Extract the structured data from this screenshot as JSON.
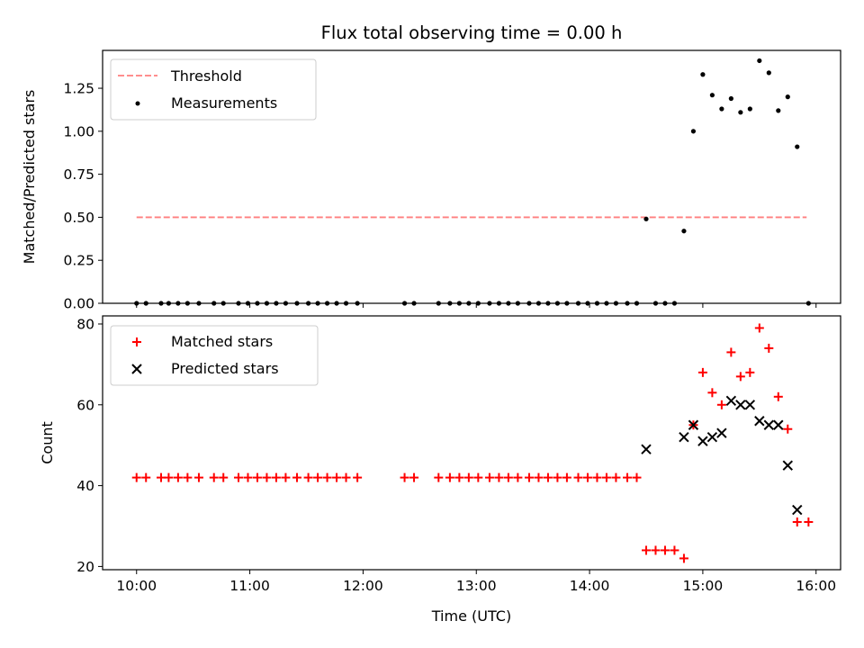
{
  "chart_data": [
    {
      "type": "scatter",
      "title": "Flux total observing time = 0.00 h",
      "xlabel": "",
      "ylabel": "Matched/Predicted stars",
      "xlim": [
        "09:42",
        "16:13"
      ],
      "ylim": [
        0,
        1.47
      ],
      "yticks": [
        0.0,
        0.25,
        0.5,
        0.75,
        1.0,
        1.25
      ],
      "ytick_labels": [
        "0.00",
        "0.25",
        "0.50",
        "0.75",
        "1.00",
        "1.25"
      ],
      "xticks": [
        "10:00",
        "11:00",
        "12:00",
        "13:00",
        "14:00",
        "15:00",
        "16:00"
      ],
      "show_xtick_labels": false,
      "grid": false,
      "legend": "upper left",
      "series": [
        {
          "name": "Threshold",
          "kind": "line",
          "color": "#ff7f7f",
          "dash": "dashed",
          "x": [
            "10:00",
            "15:55"
          ],
          "y": [
            0.5,
            0.5
          ]
        },
        {
          "name": "Measurements",
          "kind": "scatter",
          "marker": "dot",
          "color": "#000000",
          "x": [
            "10:00",
            "10:05",
            "10:13",
            "10:17",
            "10:22",
            "10:27",
            "10:33",
            "10:41",
            "10:46",
            "10:54",
            "10:59",
            "11:04",
            "11:09",
            "11:14",
            "11:19",
            "11:25",
            "11:31",
            "11:36",
            "11:41",
            "11:46",
            "11:51",
            "11:57",
            "12:22",
            "12:27",
            "12:40",
            "12:46",
            "12:51",
            "12:56",
            "13:01",
            "13:07",
            "13:12",
            "13:17",
            "13:22",
            "13:28",
            "13:33",
            "13:38",
            "13:43",
            "13:48",
            "13:54",
            "13:59",
            "14:04",
            "14:09",
            "14:14",
            "14:20",
            "14:25",
            "14:30",
            "14:35",
            "14:40",
            "14:45",
            "14:50",
            "14:55",
            "15:00",
            "15:05",
            "15:10",
            "15:15",
            "15:20",
            "15:25",
            "15:30",
            "15:35",
            "15:40",
            "15:45",
            "15:50",
            "15:56"
          ],
          "y": [
            0,
            0,
            0,
            0,
            0,
            0,
            0,
            0,
            0,
            0,
            0,
            0,
            0,
            0,
            0,
            0,
            0,
            0,
            0,
            0,
            0,
            0,
            0,
            0,
            0,
            0,
            0,
            0,
            0,
            0,
            0,
            0,
            0,
            0,
            0,
            0,
            0,
            0,
            0,
            0,
            0,
            0,
            0,
            0,
            0,
            0.49,
            0,
            0,
            0,
            0.42,
            1.0,
            1.33,
            1.21,
            1.13,
            1.19,
            1.11,
            1.13,
            1.41,
            1.34,
            1.12,
            1.2,
            0.91,
            0
          ]
        }
      ]
    },
    {
      "type": "scatter",
      "title": "",
      "xlabel": "Time (UTC)",
      "ylabel": "Count",
      "xlim": [
        "09:42",
        "16:13"
      ],
      "ylim": [
        19.2,
        82
      ],
      "yticks": [
        20,
        40,
        60,
        80
      ],
      "ytick_labels": [
        "20",
        "40",
        "60",
        "80"
      ],
      "xticks": [
        "10:00",
        "11:00",
        "12:00",
        "13:00",
        "14:00",
        "15:00",
        "16:00"
      ],
      "xtick_labels": [
        "10:00",
        "11:00",
        "12:00",
        "13:00",
        "14:00",
        "15:00",
        "16:00"
      ],
      "show_xtick_labels": true,
      "grid": false,
      "legend": "upper left",
      "series": [
        {
          "name": "Matched stars",
          "kind": "scatter",
          "marker": "plus",
          "color": "#ff0000",
          "x": [
            "10:00",
            "10:05",
            "10:13",
            "10:17",
            "10:22",
            "10:27",
            "10:33",
            "10:41",
            "10:46",
            "10:54",
            "10:59",
            "11:04",
            "11:09",
            "11:14",
            "11:19",
            "11:25",
            "11:31",
            "11:36",
            "11:41",
            "11:46",
            "11:51",
            "11:57",
            "12:22",
            "12:27",
            "12:40",
            "12:46",
            "12:51",
            "12:56",
            "13:01",
            "13:07",
            "13:12",
            "13:17",
            "13:22",
            "13:28",
            "13:33",
            "13:38",
            "13:43",
            "13:48",
            "13:54",
            "13:59",
            "14:04",
            "14:09",
            "14:14",
            "14:20",
            "14:25",
            "14:30",
            "14:35",
            "14:40",
            "14:45",
            "14:50",
            "14:55",
            "15:00",
            "15:05",
            "15:10",
            "15:15",
            "15:20",
            "15:25",
            "15:30",
            "15:35",
            "15:40",
            "15:45",
            "15:50",
            "15:56"
          ],
          "y": [
            42,
            42,
            42,
            42,
            42,
            42,
            42,
            42,
            42,
            42,
            42,
            42,
            42,
            42,
            42,
            42,
            42,
            42,
            42,
            42,
            42,
            42,
            42,
            42,
            42,
            42,
            42,
            42,
            42,
            42,
            42,
            42,
            42,
            42,
            42,
            42,
            42,
            42,
            42,
            42,
            42,
            42,
            42,
            42,
            42,
            24,
            24,
            24,
            24,
            22,
            55,
            68,
            63,
            60,
            73,
            67,
            68,
            79,
            74,
            62,
            54,
            31,
            31
          ]
        },
        {
          "name": "Predicted stars",
          "kind": "scatter",
          "marker": "x",
          "color": "#000000",
          "x": [
            "14:30",
            "14:50",
            "14:55",
            "15:00",
            "15:05",
            "15:10",
            "15:15",
            "15:20",
            "15:25",
            "15:30",
            "15:35",
            "15:40",
            "15:45",
            "15:50"
          ],
          "y": [
            49,
            52,
            55,
            51,
            52,
            53,
            61,
            60,
            60,
            56,
            55,
            55,
            45,
            34
          ]
        }
      ]
    }
  ]
}
